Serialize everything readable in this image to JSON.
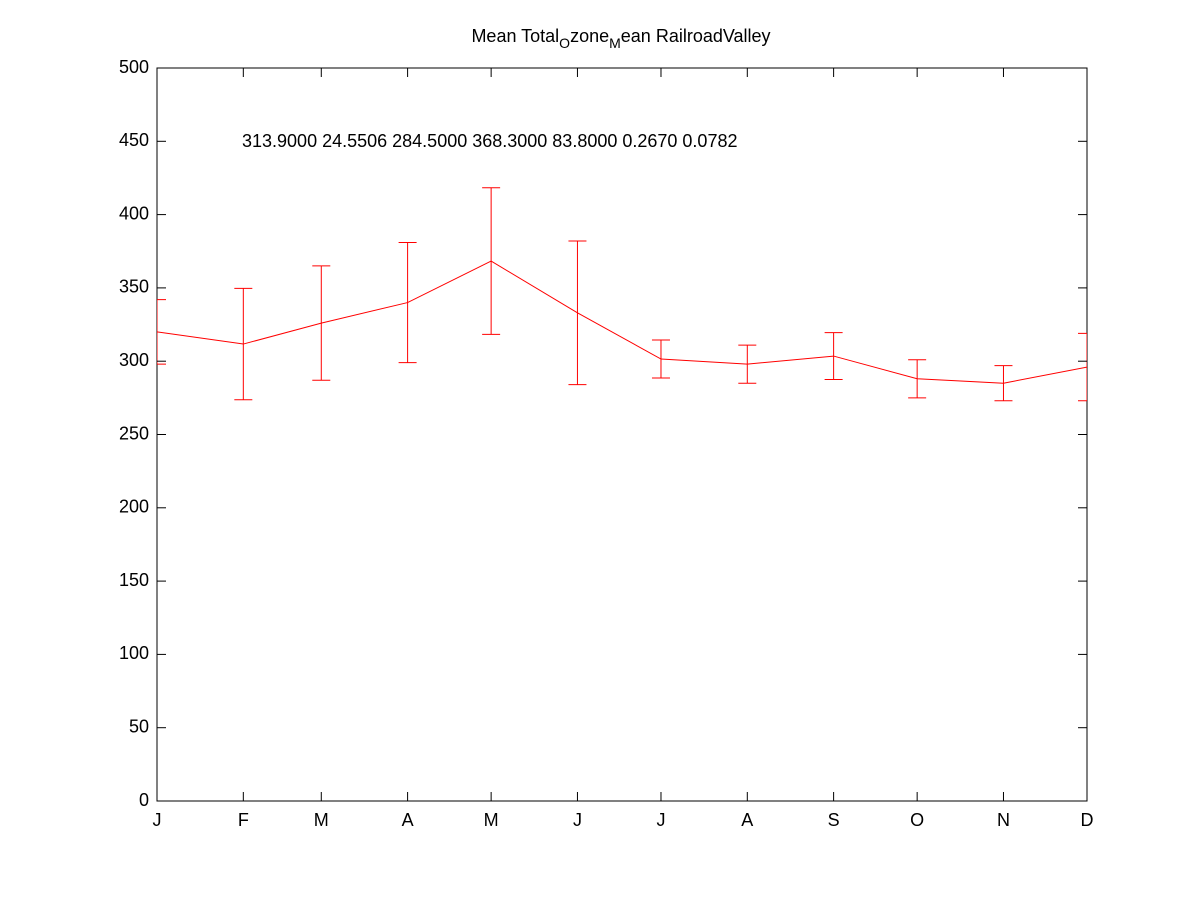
{
  "chart_data": {
    "type": "errorbar",
    "title": [
      "Mean Total",
      "O",
      "zone",
      "M",
      "ean RailroadValley"
    ],
    "annotation": "313.9000 24.5506 284.5000 368.3000 83.8000  0.2670  0.0782",
    "x": [
      1,
      32,
      60,
      91,
      121,
      152,
      182,
      213,
      244,
      274,
      305,
      335
    ],
    "values": [
      320,
      311.7,
      326,
      340,
      368.3,
      333,
      301.5,
      298,
      303.5,
      288,
      285,
      296
    ],
    "errors": [
      22,
      38,
      39,
      41,
      50,
      49,
      13,
      13,
      16,
      13,
      12,
      23
    ],
    "color": "#ff0000",
    "xlim": [
      1,
      335
    ],
    "xticks": [
      {
        "value": 1,
        "label": "J"
      },
      {
        "value": 32,
        "label": "F"
      },
      {
        "value": 60,
        "label": "M"
      },
      {
        "value": 91,
        "label": "A"
      },
      {
        "value": 121,
        "label": "M"
      },
      {
        "value": 152,
        "label": "J"
      },
      {
        "value": 182,
        "label": "J"
      },
      {
        "value": 213,
        "label": "A"
      },
      {
        "value": 244,
        "label": "S"
      },
      {
        "value": 274,
        "label": "O"
      },
      {
        "value": 305,
        "label": "N"
      },
      {
        "value": 335,
        "label": "D"
      }
    ],
    "ylim": [
      0,
      500
    ],
    "yticks": [
      0,
      50,
      100,
      150,
      200,
      250,
      300,
      350,
      400,
      450,
      500
    ],
    "grid": false
  }
}
